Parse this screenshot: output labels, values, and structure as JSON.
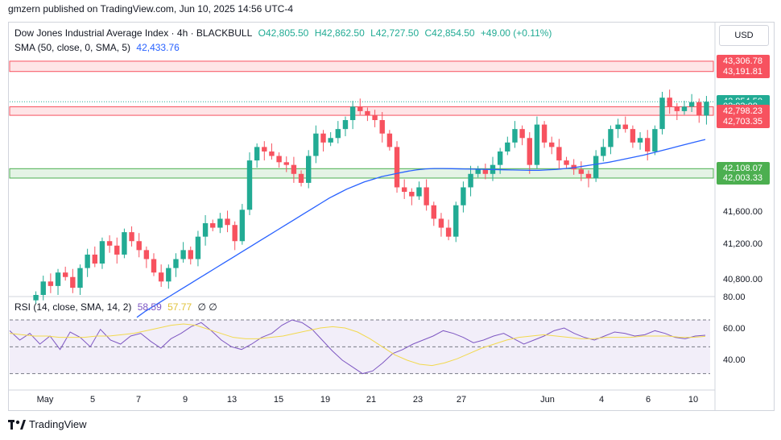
{
  "header": {
    "published": "gmzern published on TradingView.com, Jun 10, 2025 14:56 UTC-4"
  },
  "legend": {
    "symbol": "Dow Jones Industrial Average Index · 4h · BLACKBULL",
    "open": "O42,805.50",
    "high": "H42,862.50",
    "low": "L42,727.50",
    "close": "C42,854.50",
    "change": "+49.00 (+0.11%)",
    "sma_label": "SMA (50, close, 0, SMA, 5)",
    "sma_value": "42,433.76",
    "rsi_label": "RSI (14, close, SMA, 14, 2)",
    "rsi_value": "58.59",
    "rsi_ma_value": "57.77",
    "rsi_extra": "∅ ∅"
  },
  "currency_button": "USD",
  "footer": {
    "brand": "TradingView"
  },
  "price_scale": {
    "ticks": [
      "41,600.00",
      "41,200.00",
      "40,800.00"
    ],
    "badges": [
      {
        "label": "43,306.78",
        "color": "#f7525f",
        "price": 43306.78
      },
      {
        "label": "43,191.81",
        "color": "#f7525f",
        "price": 43191.81
      },
      {
        "label": "42,854.50",
        "color": "#22ab94",
        "price": 42854.5
      },
      {
        "label": "02:03:00",
        "color": "#22ab94",
        "price": 42800.0
      },
      {
        "label": "42,798.23",
        "color": "#f7525f",
        "price": 42750.0
      },
      {
        "label": "42,703.35",
        "color": "#f7525f",
        "price": 42630.0
      },
      {
        "label": "42,108.07",
        "color": "#4caf50",
        "price": 42108.07
      },
      {
        "label": "42,003.33",
        "color": "#4caf50",
        "price": 42003.33
      }
    ]
  },
  "rsi_scale": {
    "ticks": [
      "80.00",
      "60.00",
      "40.00"
    ]
  },
  "time_axis": {
    "ticks": [
      "May",
      "5",
      "7",
      "9",
      "13",
      "15",
      "19",
      "21",
      "23",
      "27",
      "Jun",
      "4",
      "6",
      "10"
    ]
  },
  "colors": {
    "up": "#22ab94",
    "down": "#f7525f",
    "sma": "#2962ff",
    "rsi": "#7e57c2",
    "rsi_ma": "#f2d94e",
    "resistance_zone": "#f7525f",
    "support_zone": "#4caf50"
  },
  "chart_data": {
    "type": "candlestick",
    "interval": "4h",
    "last_close": 42854.5,
    "zones": [
      {
        "name": "resistance-upper",
        "from": 43191.81,
        "to": 43306.78
      },
      {
        "name": "resistance-lower",
        "from": 42703.35,
        "to": 42798.23
      },
      {
        "name": "support",
        "from": 42003.33,
        "to": 42108.07
      }
    ],
    "closes": [
      40700,
      40850,
      40800,
      40950,
      40900,
      40780,
      41000,
      41150,
      41050,
      41300,
      41250,
      41150,
      41400,
      41300,
      41200,
      41100,
      40950,
      40850,
      41000,
      41100,
      41200,
      41100,
      41350,
      41500,
      41450,
      41550,
      41480,
      41300,
      41650,
      42200,
      42350,
      42300,
      42250,
      42180,
      42150,
      42050,
      41950,
      42250,
      42500,
      42400,
      42450,
      42550,
      42650,
      42800,
      42750,
      42700,
      42650,
      42500,
      42350,
      41900,
      41850,
      41800,
      41900,
      41700,
      41550,
      41450,
      41350,
      41700,
      41900,
      42050,
      42100,
      42050,
      42150,
      42300,
      42400,
      42550,
      42450,
      42150,
      42600,
      42400,
      42350,
      42200,
      42150,
      42100,
      42050,
      42000,
      42250,
      42350,
      42550,
      42600,
      42550,
      42400,
      42450,
      42300,
      42550,
      42900,
      42800,
      42750,
      42800,
      42850,
      42700,
      42854.5
    ],
    "sma50": [
      40450,
      40520,
      40580,
      40640,
      40700,
      40760,
      40820,
      40880,
      40940,
      41000,
      41060,
      41120,
      41180,
      41240,
      41300,
      41360,
      41420,
      41480,
      41540,
      41600,
      41660,
      41720,
      41780,
      41830,
      41880,
      41920,
      41960,
      41990,
      42020,
      42040,
      42060,
      42080,
      42095,
      42105,
      42110,
      42110,
      42108,
      42106,
      42104,
      42102,
      42100,
      42098,
      42096,
      42094,
      42092,
      42090,
      42090,
      42095,
      42100,
      42110,
      42120,
      42135,
      42150,
      42165,
      42180,
      42200,
      42220,
      42240,
      42260,
      42285,
      42310,
      42335,
      42360,
      42385,
      42410,
      42433.76
    ],
    "rsi": [
      62,
      55,
      60,
      52,
      58,
      48,
      61,
      57,
      50,
      63,
      55,
      52,
      58,
      60,
      54,
      49,
      56,
      60,
      65,
      68,
      62,
      55,
      50,
      48,
      52,
      57,
      60,
      66,
      70,
      68,
      63,
      55,
      47,
      40,
      35,
      30,
      32,
      38,
      45,
      48,
      52,
      55,
      58,
      62,
      60,
      57,
      53,
      55,
      58,
      60,
      56,
      52,
      55,
      58,
      62,
      64,
      60,
      57,
      55,
      58,
      61,
      60,
      58,
      59,
      62,
      60,
      57,
      56,
      58,
      58.59
    ],
    "rsi_ma": [
      60,
      59,
      58,
      58,
      57,
      57,
      57,
      58,
      58,
      59,
      60,
      62,
      64,
      66,
      67,
      66,
      63,
      60,
      57,
      56,
      56,
      57,
      58,
      60,
      62,
      64,
      65,
      64,
      61,
      56,
      50,
      44,
      40,
      37,
      36,
      38,
      41,
      45,
      49,
      52,
      55,
      57,
      58,
      59,
      58,
      57,
      56,
      56,
      57,
      57,
      57,
      58,
      58,
      58,
      57,
      57,
      57.77
    ],
    "rsi_levels": [
      70,
      50,
      30
    ]
  }
}
